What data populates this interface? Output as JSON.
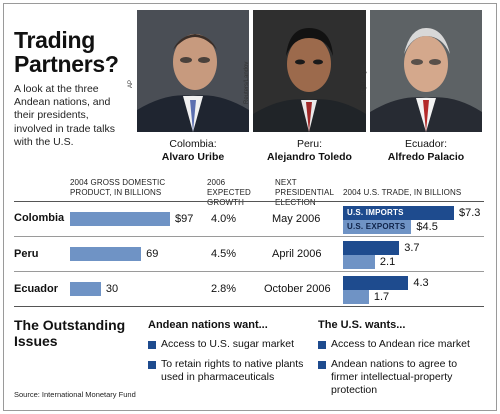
{
  "title": "Trading Partners?",
  "lede": "A look at the three Andean nations, and their presidents, involved in trade talks with the U.S.",
  "presidents": [
    {
      "country": "Colombia:",
      "name": "Alvaro Uribe",
      "credit": "AP"
    },
    {
      "country": "Peru:",
      "name": "Alejandro Toledo",
      "credit": "Reuters/Landov"
    },
    {
      "country": "Ecuador:",
      "name": "Alfredo Palacio",
      "credit": "Getty Images"
    }
  ],
  "colors": {
    "gdp_bar": "#6f93c5",
    "imports": "#1e4b8e",
    "exports": "#6f93c5",
    "bullet": "#1e4b8e"
  },
  "chart_data": {
    "type": "table",
    "columns": {
      "gdp": "2004 GROSS DOMESTIC PRODUCT, IN BILLIONS",
      "growth": "2006 EXPECTED GROWTH",
      "election": "NEXT PRESIDENTIAL ELECTION",
      "trade": "2004 U.S. TRADE, IN BILLIONS"
    },
    "trade_series": [
      "U.S. IMPORTS",
      "U.S. EXPORTS"
    ],
    "rows": [
      {
        "country": "Colombia",
        "gdp": 97,
        "gdp_label": "$97",
        "growth": "4.0%",
        "election": "May 2006",
        "imports": 7.3,
        "imports_label": "$7.3",
        "exports": 4.5,
        "exports_label": "$4.5"
      },
      {
        "country": "Peru",
        "gdp": 69,
        "gdp_label": "69",
        "growth": "4.5%",
        "election": "April 2006",
        "imports": 3.7,
        "imports_label": "3.7",
        "exports": 2.1,
        "exports_label": "2.1"
      },
      {
        "country": "Ecuador",
        "gdp": 30,
        "gdp_label": "30",
        "growth": "2.8%",
        "election": "October 2006",
        "imports": 4.3,
        "imports_label": "4.3",
        "exports": 1.7,
        "exports_label": "1.7"
      }
    ],
    "gdp_max": 97,
    "trade_max": 7.3
  },
  "issues": {
    "title": "The Outstanding Issues",
    "andean_title": "Andean nations want...",
    "andean_items": [
      "Access to U.S. sugar market",
      "To retain rights to native plants used in pharmaceuticals"
    ],
    "us_title": "The U.S. wants...",
    "us_items": [
      "Access to Andean rice market",
      "Andean nations to agree to firmer intellectual-property protection"
    ]
  },
  "source": "Source: International Monetary Fund"
}
